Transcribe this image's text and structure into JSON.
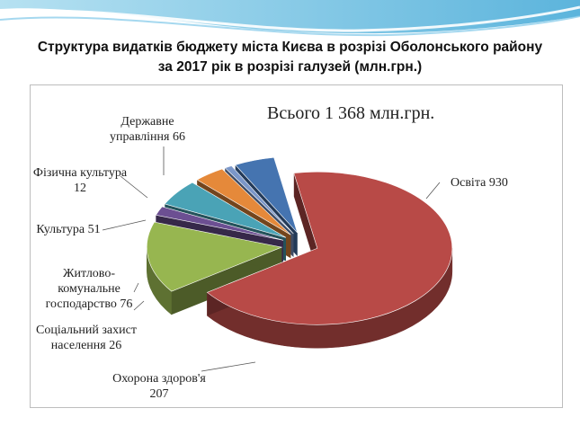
{
  "header": {
    "title_line1": "Структура видатків бюджету міста Києва в розрізі Оболонського району",
    "title_line2": "за 2017 рік в розрізі галузей (млн.грн.)"
  },
  "chart_data": {
    "type": "pie",
    "total_label": "Всього 1 368 млн.грн.",
    "categories": [
      "Освіта",
      "Охорона здоров'я",
      "Соціальний захист населення",
      "Житлово-комунальне господарство",
      "Культура",
      "Фізична культура",
      "Державне управління"
    ],
    "values": [
      930,
      207,
      26,
      76,
      51,
      12,
      66
    ],
    "labels": [
      [
        "Освіта 930"
      ],
      [
        "Охорона здоров'я",
        "207"
      ],
      [
        "Соціальний захист",
        "населення 26"
      ],
      [
        "Житлово-",
        "комунальне",
        "господарство 76"
      ],
      [
        "Культура 51"
      ],
      [
        "Фізична культура",
        "12"
      ],
      [
        "Державне",
        "управління 66"
      ]
    ],
    "colors": [
      "#b84a47",
      "#97b650",
      "#6c4f92",
      "#4aa3b6",
      "#e5893a",
      "#7b97c9",
      "#4574b0"
    ],
    "legend": "none",
    "style": "3d exploded pie"
  }
}
